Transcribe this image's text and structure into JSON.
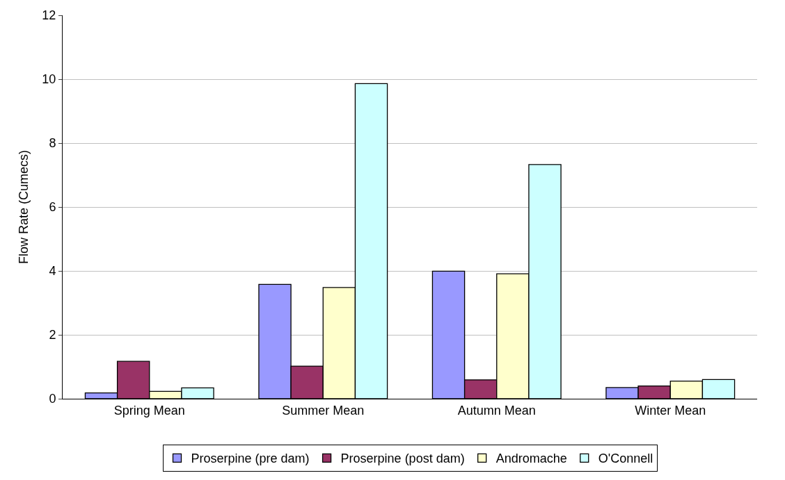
{
  "chart_data": {
    "type": "bar",
    "ylabel": "Flow Rate (Cumecs)",
    "categories": [
      "Spring Mean",
      "Summer Mean",
      "Autumn Mean",
      "Winter Mean"
    ],
    "series": [
      {
        "name": "Proserpine (pre dam)",
        "color": "#9999ff",
        "values": [
          0.18,
          3.58,
          3.99,
          0.35
        ]
      },
      {
        "name": "Proserpine (post dam)",
        "color": "#993366",
        "values": [
          1.17,
          1.02,
          0.59,
          0.4
        ]
      },
      {
        "name": "Andromache",
        "color": "#ffffcc",
        "values": [
          0.23,
          3.48,
          3.91,
          0.55
        ]
      },
      {
        "name": "O'Connell",
        "color": "#ccffff",
        "values": [
          0.34,
          9.86,
          7.33,
          0.6
        ]
      }
    ],
    "ylim": [
      0,
      12
    ],
    "yticks": [
      0,
      2,
      4,
      6,
      8,
      10,
      12
    ],
    "grid": "y",
    "legend": "bottom"
  }
}
